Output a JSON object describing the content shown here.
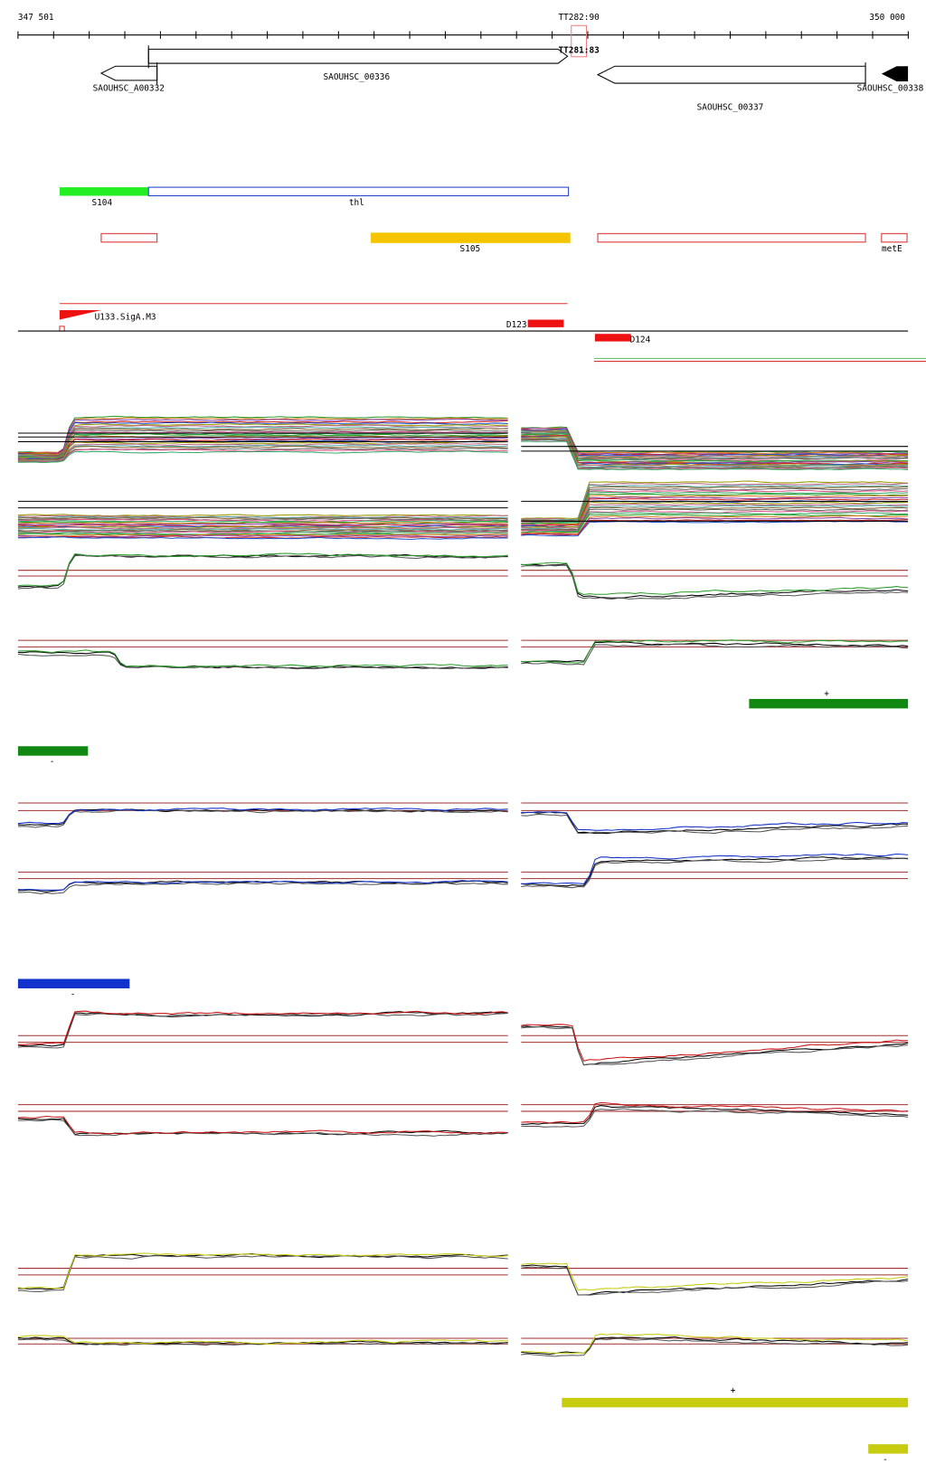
{
  "ruler": {
    "start": "347 501",
    "marker": "TT282:90",
    "marker_overlap": "TT281:83",
    "end": "350 000"
  },
  "genes": [
    "SAOUHSC_A00332",
    "SAOUHSC_00336",
    "SAOUHSC_00338",
    "SAOUHSC_00337"
  ],
  "features": [
    "S104",
    "thl",
    "S105",
    "metE",
    "U133.SigA.M3",
    "D123",
    "D124"
  ],
  "strand_labels": [
    "+",
    "-",
    "-",
    "+",
    "-"
  ]
}
